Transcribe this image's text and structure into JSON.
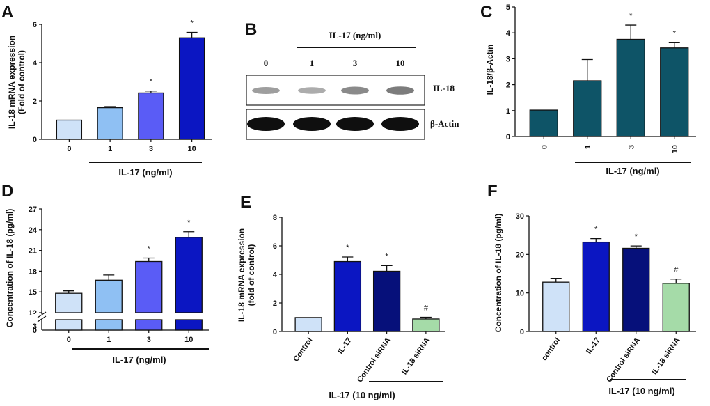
{
  "chart_data": [
    {
      "panel": "A",
      "type": "bar",
      "categories": [
        "0",
        "1",
        "3",
        "10"
      ],
      "values": [
        1.0,
        1.65,
        2.42,
        5.3
      ],
      "errors": [
        0.0,
        0.06,
        0.1,
        0.28
      ],
      "significance": [
        "",
        "",
        "*",
        "*"
      ],
      "colors": [
        "#cfe2f8",
        "#8fc0f3",
        "#5a5cf6",
        "#0b16c2"
      ],
      "ylabel": "IL-18 mRNA expression\n(Fold of control)",
      "xgroup": "IL-17 (ng/ml)",
      "ylim": [
        0,
        6
      ],
      "yticks": [
        0,
        2,
        4,
        6
      ]
    },
    {
      "panel": "C",
      "type": "bar",
      "categories": [
        "0",
        "1",
        "3",
        "10"
      ],
      "values": [
        1.02,
        2.15,
        3.75,
        3.42
      ],
      "errors": [
        0.0,
        0.82,
        0.55,
        0.2
      ],
      "significance": [
        "",
        "",
        "*",
        "*"
      ],
      "colors": [
        "#0e5467",
        "#0e5467",
        "#0e5467",
        "#0e5467"
      ],
      "ylabel": "IL-18/β-Actin",
      "xgroup": "IL-17 (ng/ml)",
      "ylim": [
        0,
        5
      ],
      "yticks": [
        0,
        1,
        2,
        3,
        4,
        5
      ]
    },
    {
      "panel": "D",
      "type": "bar",
      "categories": [
        "0",
        "1",
        "3",
        "10"
      ],
      "values": [
        14.8,
        16.7,
        19.4,
        22.9
      ],
      "errors": [
        0.35,
        0.75,
        0.5,
        0.8
      ],
      "significance": [
        "",
        "",
        "*",
        "*"
      ],
      "colors": [
        "#cfe2f8",
        "#8fc0f3",
        "#5a5cf6",
        "#0b16c2"
      ],
      "ylabel": "Concentration of IL-18 (pg/ml)",
      "xgroup": "IL-17 (ng/ml)",
      "ylim": [
        12,
        27
      ],
      "yticks": [
        12,
        15,
        18,
        21,
        24,
        27
      ],
      "lower_ticks": [
        "3",
        "0"
      ],
      "axis_break": true
    },
    {
      "panel": "E",
      "type": "bar",
      "categories": [
        "Control",
        "IL-17",
        "Control siRNA",
        "IL-18 siRNA"
      ],
      "values": [
        0.98,
        4.9,
        4.22,
        0.88
      ],
      "errors": [
        0.0,
        0.32,
        0.4,
        0.12
      ],
      "significance": [
        "",
        "*",
        "*",
        "#"
      ],
      "colors": [
        "#cfe2f8",
        "#0b16c2",
        "#06107a",
        "#a5dba8"
      ],
      "ylabel": "IL-18 mRNA expression\n(fold of control)",
      "xgroup": "IL-17 (10 ng/ml)",
      "ylim": [
        0,
        8
      ],
      "yticks": [
        0,
        2,
        4,
        6,
        8
      ]
    },
    {
      "panel": "F",
      "type": "bar",
      "categories": [
        "control",
        "IL-17",
        "Control siRNA",
        "IL-18 siRNA"
      ],
      "values": [
        12.8,
        23.2,
        21.6,
        12.5
      ],
      "errors": [
        1.0,
        0.9,
        0.6,
        1.1
      ],
      "significance": [
        "",
        "*",
        "*",
        "#"
      ],
      "colors": [
        "#cfe2f8",
        "#0b16c2",
        "#06107a",
        "#a5dba8"
      ],
      "ylabel": "Concentration of IL-18 (pg/ml)",
      "xgroup": "IL-17 (10 ng/ml)",
      "ylim": [
        0,
        30
      ],
      "yticks": [
        0,
        10,
        20,
        30
      ]
    }
  ],
  "western_blot": {
    "panel": "B",
    "header": "IL-17 (ng/ml)",
    "lanes": [
      "0",
      "1",
      "3",
      "10"
    ],
    "rows": [
      "IL-18",
      "β-Actin"
    ],
    "il18_intensity": [
      0.35,
      0.25,
      0.5,
      0.6
    ],
    "actin_intensity": [
      1.0,
      1.0,
      1.0,
      1.0
    ]
  }
}
